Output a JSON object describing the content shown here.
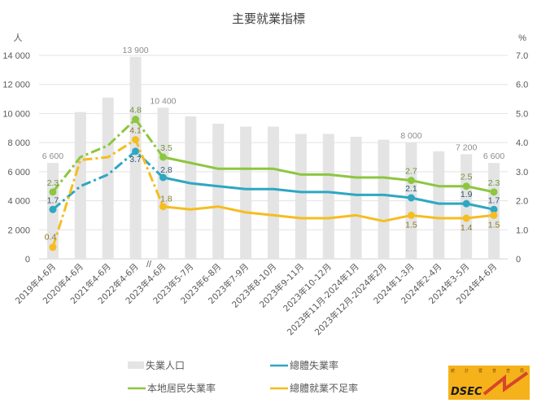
{
  "chart_data": {
    "type": "bar+line",
    "title": "主要就業指標",
    "y_left_unit": "人",
    "y_right_unit": "%",
    "y_left_range": [
      0,
      14000
    ],
    "y_left_ticks": [
      "0",
      "2 000",
      "4 000",
      "6 000",
      "8 000",
      "10 000",
      "12 000",
      "14 000"
    ],
    "y_right_range": [
      0,
      7
    ],
    "y_right_ticks": [
      "0",
      "1.0",
      "2.0",
      "3.0",
      "4.0",
      "5.0",
      "6.0",
      "7.0"
    ],
    "grid": true,
    "legend_position": "bottom",
    "axis_break_marker": "//",
    "categories": [
      "2019年4-6月",
      "2020年4-6月",
      "2021年4-6月",
      "2022年4-6月",
      "2023年4-6月",
      "2023年5-7月",
      "2023年6-8月",
      "2023年7-9月",
      "2023年8-10月",
      "2023年9-11月",
      "2023年10-12月",
      "2023年11月-2024年1月",
      "2023年12月-2024年2月",
      "2024年1-3月",
      "2024年2-4月",
      "2024年3-5月",
      "2024年4-6月"
    ],
    "bars": {
      "name": "失業人口",
      "color": "#e4e4e4",
      "values": [
        6600,
        10100,
        11100,
        13900,
        10400,
        9800,
        9300,
        9100,
        9100,
        8600,
        8600,
        8400,
        8200,
        8000,
        7400,
        7200,
        6600
      ],
      "labels": [
        "6 600",
        "",
        "",
        "13 900",
        "10 400",
        "",
        "",
        "",
        "",
        "",
        "",
        "",
        "",
        "8 000",
        "",
        "7 200",
        "6 600"
      ]
    },
    "series": [
      {
        "name": "總體失業率",
        "color": "#2ea7c2",
        "values": [
          1.7,
          2.5,
          2.9,
          3.7,
          2.8,
          2.6,
          2.5,
          2.4,
          2.4,
          2.3,
          2.3,
          2.2,
          2.2,
          2.1,
          1.9,
          1.9,
          1.7
        ],
        "labels": [
          "1.7",
          "",
          "",
          "3.7",
          "2.8",
          "",
          "",
          "",
          "",
          "",
          "",
          "",
          "",
          "2.1",
          "",
          "1.9",
          "1.7"
        ]
      },
      {
        "name": "本地居民失業率",
        "color": "#8dc63f",
        "values": [
          2.3,
          3.5,
          3.9,
          4.8,
          3.5,
          3.3,
          3.1,
          3.1,
          3.1,
          2.9,
          2.9,
          2.8,
          2.8,
          2.7,
          2.5,
          2.5,
          2.3
        ],
        "labels": [
          "2.3",
          "",
          "",
          "4.8",
          "3.5",
          "",
          "",
          "",
          "",
          "",
          "",
          "",
          "",
          "2.7",
          "",
          "2.5",
          "2.3"
        ]
      },
      {
        "name": "總體就業不足率",
        "color": "#f5bd1f",
        "values": [
          0.4,
          3.4,
          3.5,
          4.1,
          1.8,
          1.7,
          1.8,
          1.6,
          1.5,
          1.4,
          1.4,
          1.5,
          1.3,
          1.5,
          1.4,
          1.4,
          1.5
        ],
        "labels": [
          "0.4",
          "",
          "",
          "4.1",
          "1.8",
          "",
          "",
          "",
          "",
          "",
          "",
          "",
          "",
          "1.5",
          "",
          "1.4",
          "1.5"
        ]
      }
    ]
  },
  "logo": {
    "text": "DSEC",
    "lettering": "統計暨普查局"
  }
}
